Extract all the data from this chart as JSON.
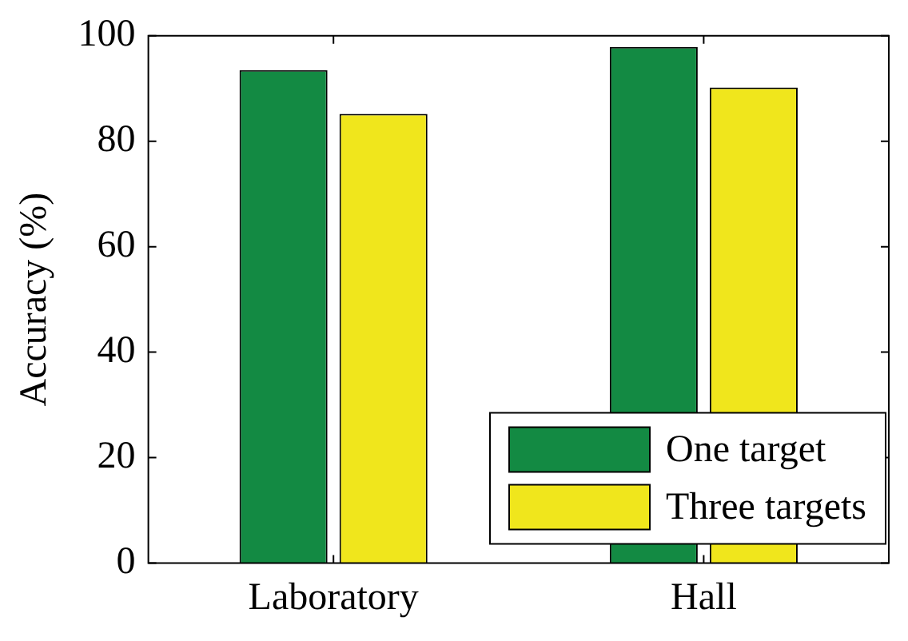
{
  "chart_data": {
    "type": "bar",
    "ylabel": "Accuracy (%)",
    "categories": [
      "Laboratory",
      "Hall"
    ],
    "series": [
      {
        "name": "One target",
        "color": "#138a43",
        "values": [
          93.5,
          97.9
        ]
      },
      {
        "name": "Three targets",
        "color": "#f0e61c",
        "values": [
          85.2,
          90.2
        ]
      }
    ],
    "ylim": [
      0,
      100
    ],
    "yticks": [
      0,
      20,
      40,
      60,
      80,
      100
    ],
    "grid": false,
    "legend": "bottom right"
  }
}
